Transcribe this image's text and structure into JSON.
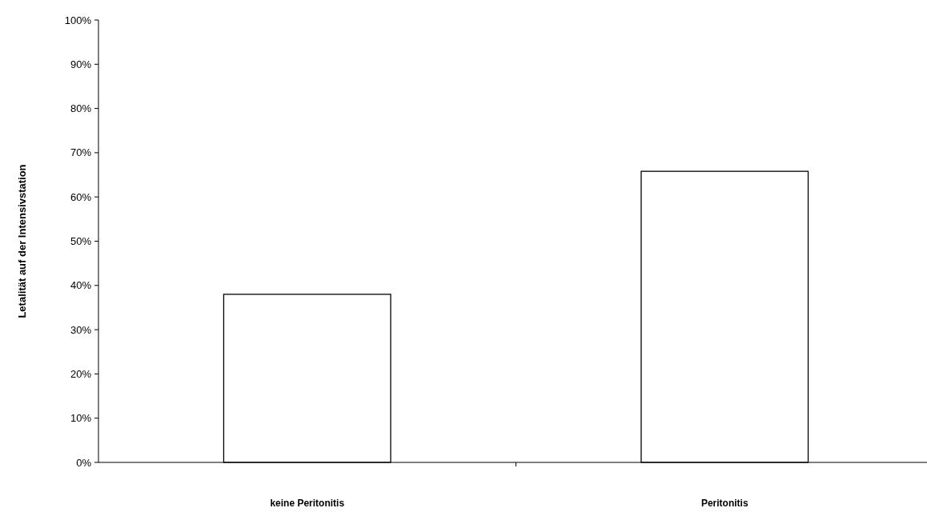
{
  "chart_data": {
    "type": "bar",
    "ylabel": "Letalität auf der Intensivstation",
    "categories": [
      "keine Peritonitis",
      "Peritonitis"
    ],
    "values": [
      38,
      65.8
    ],
    "color": "#ffffff",
    "ylim": [
      0,
      100
    ],
    "yticks": [
      {
        "value": 0,
        "label": "0%"
      },
      {
        "value": 10,
        "label": "10%"
      },
      {
        "value": 20,
        "label": "20%"
      },
      {
        "value": 30,
        "label": "30%"
      },
      {
        "value": 40,
        "label": "40%"
      },
      {
        "value": 50,
        "label": "50%"
      },
      {
        "value": 60,
        "label": "60%"
      },
      {
        "value": 70,
        "label": "70%"
      },
      {
        "value": 80,
        "label": "80%"
      },
      {
        "value": 90,
        "label": "90%"
      },
      {
        "value": 100,
        "label": "100%"
      }
    ],
    "grid": false
  }
}
